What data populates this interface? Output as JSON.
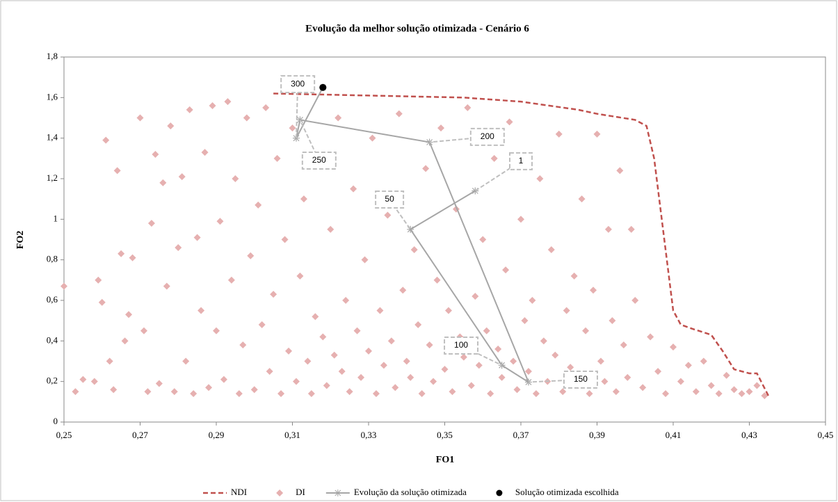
{
  "chart_data": {
    "type": "scatter",
    "title": "Evolução da melhor solução otimizada - Cenário 6",
    "x_label": "FO1",
    "y_label": "FO2",
    "xlim": [
      0.25,
      0.45
    ],
    "xticks": [
      {
        "value": 0.25,
        "label": "0,25"
      },
      {
        "value": 0.27,
        "label": "0,27"
      },
      {
        "value": 0.29,
        "label": "0,29"
      },
      {
        "value": 0.31,
        "label": "0,31"
      },
      {
        "value": 0.33,
        "label": "0,33"
      },
      {
        "value": 0.35,
        "label": "0,35"
      },
      {
        "value": 0.37,
        "label": "0,37"
      },
      {
        "value": 0.39,
        "label": "0,39"
      },
      {
        "value": 0.41,
        "label": "0,41"
      },
      {
        "value": 0.43,
        "label": "0,43"
      },
      {
        "value": 0.45,
        "label": "0,45"
      }
    ],
    "ylim": [
      0,
      1.8
    ],
    "yticks": [
      0,
      {
        "value": 0.2,
        "label": "0,2"
      },
      {
        "value": 0.4,
        "label": "0,4"
      },
      {
        "value": 0.6,
        "label": "0,6"
      },
      {
        "value": 0.8,
        "label": "0,8"
      },
      1,
      {
        "value": 1.2,
        "label": "1,2"
      },
      {
        "value": 1.4,
        "label": "1,4"
      },
      {
        "value": 1.6,
        "label": "1,6"
      },
      {
        "value": 1.8,
        "label": "1,8"
      }
    ],
    "legend": "bottom",
    "series": [
      {
        "name": "NDI",
        "color": "#c0504d",
        "style": "dashed-line",
        "x": [
          0.305,
          0.33,
          0.355,
          0.37,
          0.385,
          0.39,
          0.4,
          0.403,
          0.405,
          0.407,
          0.409,
          0.41,
          0.412,
          0.415,
          0.42,
          0.423,
          0.426,
          0.43,
          0.432,
          0.435
        ],
        "y": [
          1.62,
          1.61,
          1.6,
          1.58,
          1.54,
          1.52,
          1.49,
          1.46,
          1.3,
          1.0,
          0.7,
          0.55,
          0.48,
          0.46,
          0.43,
          0.35,
          0.26,
          0.24,
          0.24,
          0.13
        ]
      },
      {
        "name": "DI",
        "color": "#e6b0b0",
        "style": "diamond",
        "x": [
          0.25,
          0.253,
          0.255,
          0.258,
          0.259,
          0.26,
          0.261,
          0.262,
          0.263,
          0.264,
          0.265,
          0.266,
          0.267,
          0.268,
          0.27,
          0.271,
          0.272,
          0.273,
          0.274,
          0.275,
          0.276,
          0.277,
          0.278,
          0.279,
          0.28,
          0.281,
          0.282,
          0.283,
          0.284,
          0.285,
          0.286,
          0.287,
          0.288,
          0.289,
          0.29,
          0.291,
          0.292,
          0.293,
          0.294,
          0.295,
          0.296,
          0.297,
          0.298,
          0.299,
          0.3,
          0.301,
          0.302,
          0.303,
          0.304,
          0.305,
          0.306,
          0.307,
          0.308,
          0.309,
          0.31,
          0.311,
          0.312,
          0.313,
          0.314,
          0.315,
          0.316,
          0.317,
          0.318,
          0.319,
          0.32,
          0.321,
          0.322,
          0.323,
          0.324,
          0.325,
          0.326,
          0.327,
          0.328,
          0.329,
          0.33,
          0.331,
          0.332,
          0.333,
          0.334,
          0.335,
          0.336,
          0.337,
          0.338,
          0.339,
          0.34,
          0.341,
          0.342,
          0.343,
          0.344,
          0.345,
          0.346,
          0.347,
          0.348,
          0.349,
          0.35,
          0.351,
          0.352,
          0.353,
          0.354,
          0.355,
          0.356,
          0.357,
          0.358,
          0.359,
          0.36,
          0.361,
          0.362,
          0.363,
          0.364,
          0.365,
          0.366,
          0.367,
          0.368,
          0.369,
          0.37,
          0.371,
          0.372,
          0.373,
          0.374,
          0.375,
          0.376,
          0.377,
          0.378,
          0.379,
          0.38,
          0.381,
          0.382,
          0.383,
          0.384,
          0.385,
          0.386,
          0.387,
          0.388,
          0.389,
          0.39,
          0.391,
          0.392,
          0.393,
          0.394,
          0.395,
          0.396,
          0.397,
          0.398,
          0.399,
          0.4,
          0.402,
          0.404,
          0.406,
          0.408,
          0.41,
          0.412,
          0.414,
          0.416,
          0.418,
          0.42,
          0.422,
          0.424,
          0.426,
          0.428,
          0.43,
          0.432,
          0.434
        ],
        "y": [
          0.67,
          0.15,
          0.21,
          0.2,
          0.7,
          0.59,
          1.39,
          0.3,
          0.16,
          1.24,
          0.83,
          0.4,
          0.53,
          0.81,
          1.5,
          0.45,
          0.15,
          0.98,
          1.32,
          0.19,
          1.18,
          0.67,
          1.46,
          0.15,
          0.86,
          1.21,
          0.3,
          1.54,
          0.14,
          0.91,
          0.55,
          1.33,
          0.17,
          1.56,
          0.45,
          0.99,
          0.21,
          1.58,
          0.7,
          1.2,
          0.14,
          0.38,
          1.5,
          0.82,
          0.16,
          1.07,
          0.48,
          1.55,
          0.25,
          0.63,
          1.3,
          0.14,
          0.9,
          0.35,
          1.45,
          0.2,
          0.72,
          1.1,
          0.3,
          0.14,
          0.52,
          1.28,
          0.42,
          0.18,
          0.95,
          0.33,
          1.5,
          0.25,
          0.6,
          0.15,
          1.15,
          0.45,
          0.22,
          0.8,
          0.35,
          1.4,
          0.14,
          0.55,
          0.28,
          1.02,
          0.4,
          0.17,
          1.52,
          0.65,
          0.3,
          0.22,
          0.85,
          0.48,
          0.14,
          1.25,
          0.38,
          0.2,
          0.7,
          1.45,
          0.26,
          0.55,
          0.15,
          1.05,
          0.42,
          0.32,
          1.55,
          0.18,
          0.62,
          0.28,
          0.9,
          0.45,
          0.14,
          1.3,
          0.36,
          0.22,
          0.75,
          1.48,
          0.3,
          0.16,
          1.0,
          0.5,
          0.25,
          0.6,
          0.14,
          1.2,
          0.4,
          0.2,
          0.85,
          0.33,
          1.42,
          0.15,
          0.55,
          0.27,
          0.72,
          0.18,
          1.1,
          0.45,
          0.14,
          0.65,
          1.42,
          0.3,
          0.2,
          0.95,
          0.5,
          0.15,
          1.24,
          0.38,
          0.22,
          0.95,
          0.6,
          0.17,
          0.42,
          0.25,
          0.14,
          0.37,
          0.2,
          0.28,
          0.15,
          0.3,
          0.18,
          0.14,
          0.23,
          0.16,
          0.14,
          0.15,
          0.18,
          0.13
        ]
      },
      {
        "name": "Evolução da solução otimizada",
        "color": "#a6a6a6",
        "style": "star-line",
        "x": [
          0.358,
          0.341,
          0.365,
          0.372,
          0.346,
          0.312,
          0.311,
          0.318
        ],
        "y": [
          1.14,
          0.95,
          0.28,
          0.197,
          1.38,
          1.49,
          1.4,
          1.65
        ]
      },
      {
        "name": "Solução otimizada escolhida",
        "color": "#000000",
        "style": "circle",
        "x": [
          0.318
        ],
        "y": [
          1.65
        ]
      }
    ],
    "annotations": [
      {
        "text": "1",
        "x": 0.37,
        "y": 1.286
      },
      {
        "text": "50",
        "x": 0.3355,
        "y": 1.097
      },
      {
        "text": "100",
        "x": 0.3543,
        "y": 0.377
      },
      {
        "text": "150",
        "x": 0.3857,
        "y": 0.209
      },
      {
        "text": "200",
        "x": 0.3612,
        "y": 1.406
      },
      {
        "text": "250",
        "x": 0.317,
        "y": 1.289
      },
      {
        "text": "300",
        "x": 0.3114,
        "y": 1.666
      }
    ]
  }
}
